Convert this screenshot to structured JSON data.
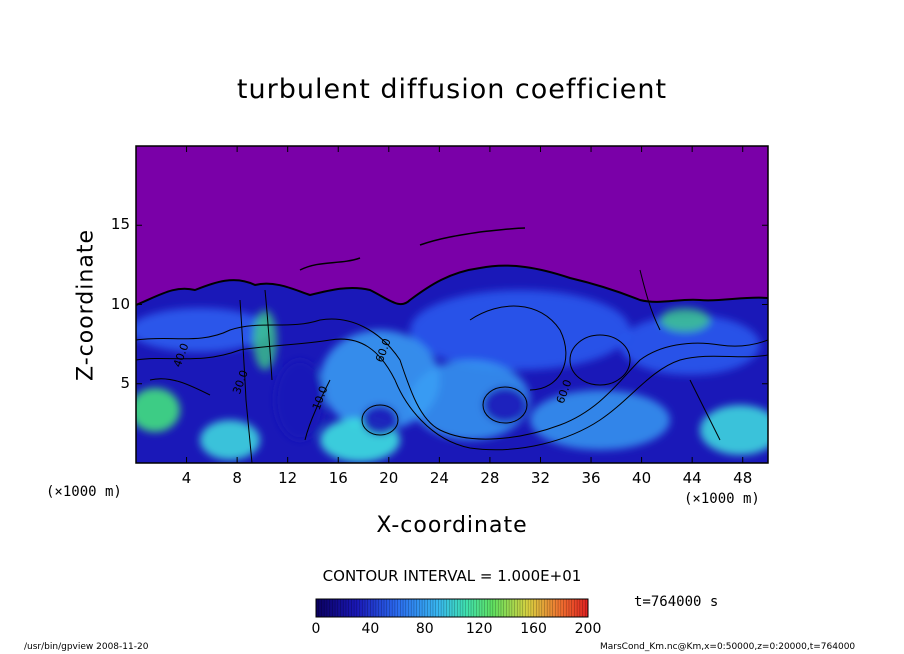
{
  "chart_data": {
    "type": "heatmap",
    "title": "turbulent diffusion coefficient",
    "xlabel": "X-coordinate",
    "ylabel": "Z-coordinate",
    "x_unit": "(×1000 m)",
    "y_unit": "(×1000 m)",
    "xlim": [
      0,
      50
    ],
    "ylim": [
      0,
      20
    ],
    "x_ticks": [
      4,
      8,
      12,
      16,
      20,
      24,
      28,
      32,
      36,
      40,
      44,
      48
    ],
    "y_ticks": [
      5,
      10,
      15
    ],
    "contour_interval": "CONTOUR INTERVAL = 1.000E+01",
    "colorbar": {
      "min": 0,
      "max": 200,
      "ticks": [
        0,
        40,
        80,
        120,
        160,
        200
      ]
    },
    "contour_labels": [
      {
        "x": 3.5,
        "z": 6.0,
        "text": "40.0"
      },
      {
        "x": 14.5,
        "z": 3.3,
        "text": "10.0"
      },
      {
        "x": 19.5,
        "z": 6.3,
        "text": "60.0"
      },
      {
        "x": 33.8,
        "z": 3.7,
        "text": "60.0"
      },
      {
        "x": 8.2,
        "z": 4.3,
        "text": "30.0"
      }
    ],
    "time_label": "t=764000 s",
    "colors": {
      "upper_layer": "#7a00a8",
      "deep_blue": "#1a18b8",
      "mid_blue": "#2b5cf0",
      "light_blue": "#38a0f5",
      "cyan": "#3fe0e0",
      "green": "#40e080"
    }
  },
  "footer": {
    "left": "/usr/bin/gpview   2008-11-20",
    "right": "MarsCond_Km.nc@Km,x=0:50000,z=0:20000,t=764000"
  }
}
